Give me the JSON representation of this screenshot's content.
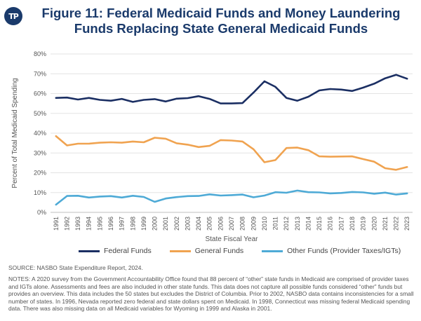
{
  "logo": {
    "text": "TP"
  },
  "title": {
    "line1": "Figure 11: Federal Medicaid Funds and Money Laundering",
    "line2": "Funds Replacing State General Medicaid Funds"
  },
  "chart_data": {
    "type": "line",
    "xlabel": "State Fiscal Year",
    "ylabel": "Percent of Total Medicaid Spending",
    "ylim": [
      0,
      80
    ],
    "yticks": [
      "0%",
      "10%",
      "20%",
      "30%",
      "40%",
      "50%",
      "60%",
      "70%",
      "80%"
    ],
    "grid": true,
    "legend_position": "bottom",
    "categories": [
      "1991",
      "1992",
      "1993",
      "1994",
      "1995",
      "1996",
      "1997",
      "1998",
      "1999",
      "2000",
      "2001",
      "2002",
      "2003",
      "2004",
      "2005",
      "2006",
      "2007",
      "2008",
      "2009",
      "2010",
      "2011",
      "2012",
      "2013",
      "2014",
      "2015",
      "2016",
      "2017",
      "2018",
      "2019",
      "2020",
      "2021",
      "2022",
      "2023"
    ],
    "series": [
      {
        "name": "Federal Funds",
        "color": "#1b2f63",
        "values": [
          57.8,
          58.0,
          57.0,
          57.8,
          56.8,
          56.4,
          57.3,
          55.8,
          56.8,
          57.2,
          56.0,
          57.4,
          57.7,
          58.7,
          57.3,
          55.0,
          55.0,
          55.2,
          60.5,
          66.2,
          63.4,
          57.8,
          56.4,
          58.4,
          61.6,
          62.3,
          62.0,
          61.3,
          63.0,
          65.0,
          67.7,
          69.5,
          67.5
        ]
      },
      {
        "name": "General Funds",
        "color": "#f0a350",
        "values": [
          38.5,
          33.8,
          34.7,
          34.7,
          35.2,
          35.4,
          35.2,
          35.8,
          35.4,
          37.7,
          37.2,
          34.9,
          34.2,
          33.0,
          33.6,
          36.5,
          36.3,
          35.8,
          31.9,
          25.3,
          26.4,
          32.5,
          32.7,
          31.4,
          28.3,
          28.1,
          28.2,
          28.3,
          26.9,
          25.6,
          22.3,
          21.5,
          22.9
        ]
      },
      {
        "name": "Other Funds (Provider Taxes/IGTs)",
        "color": "#4eaad6",
        "values": [
          3.9,
          8.3,
          8.4,
          7.5,
          8.0,
          8.2,
          7.5,
          8.4,
          7.8,
          5.3,
          7.0,
          7.7,
          8.2,
          8.3,
          9.1,
          8.5,
          8.7,
          9.0,
          7.6,
          8.5,
          10.2,
          9.9,
          11.0,
          10.2,
          10.1,
          9.6,
          9.8,
          10.3,
          10.1,
          9.4,
          10.0,
          9.0,
          9.6
        ]
      }
    ]
  },
  "source": "SOURCE: NASBO State Expenditure Report, 2024.",
  "notes": "NOTES: A 2020 survey from the Government Accountability Office found that 88 percent of “other” state funds in Medicaid are comprised of provider taxes and IGTs alone. Assessments and fees are also included in other state funds. This data does not capture all possible funds considered “other” funds but provides an overview. This data includes the 50 states but excludes the District of Columbia. Prior to 2002, NASBO data contains inconsistencies for a small number of states. In 1996, Nevada reported zero federal and state dollars spent on Medicaid. In 1998, Connecticut was missing federal Medicaid spending data. There was also missing data on all Medicaid variables for Wyoming in 1999 and Alaska in 2001."
}
